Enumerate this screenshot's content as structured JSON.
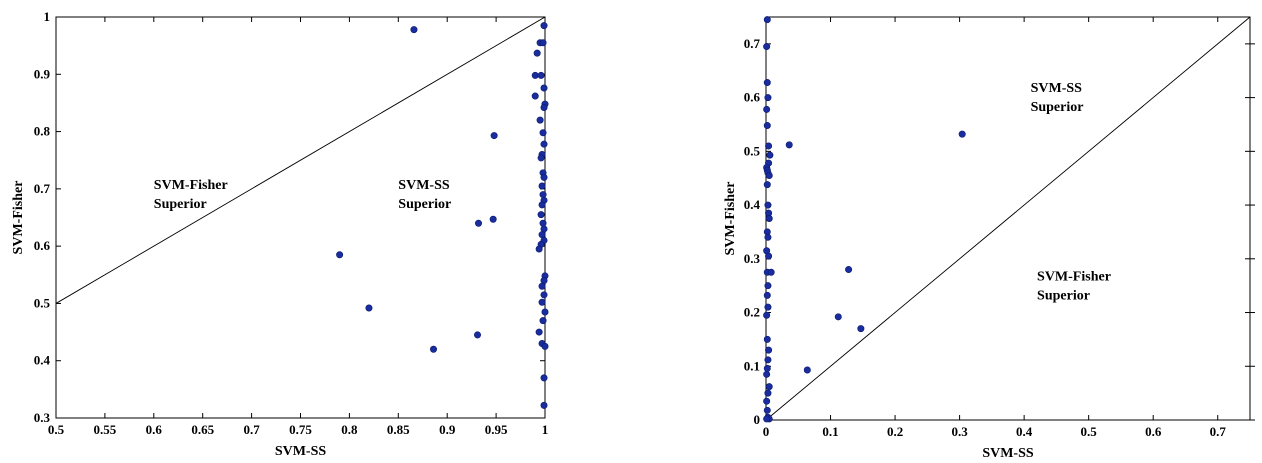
{
  "chart_data": [
    {
      "type": "scatter",
      "title": "",
      "xlabel": "SVM-SS",
      "ylabel": "SVM-Fisher",
      "xlim": [
        0.5,
        1
      ],
      "ylim": [
        0.3,
        1
      ],
      "xticks": [
        "0.5",
        "0.55",
        "0.6",
        "0.65",
        "0.7",
        "0.75",
        "0.8",
        "0.85",
        "0.9",
        "0.95",
        "1"
      ],
      "yticks": [
        "0.3",
        "0.4",
        "0.5",
        "0.6",
        "0.7",
        "0.8",
        "0.9",
        "1"
      ],
      "grid": false,
      "diagonal": true,
      "point_color": "#1a2d9e",
      "annotations": [
        {
          "lines": [
            "SVM-Fisher",
            "Superior"
          ],
          "x": 0.6,
          "y": 0.7
        },
        {
          "lines": [
            "SVM-SS",
            "Superior"
          ],
          "x": 0.85,
          "y": 0.7
        }
      ],
      "points": [
        [
          0.866,
          0.978
        ],
        [
          0.999,
          0.985
        ],
        [
          0.995,
          0.955
        ],
        [
          0.998,
          0.955
        ],
        [
          0.992,
          0.937
        ],
        [
          0.99,
          0.898
        ],
        [
          0.996,
          0.898
        ],
        [
          0.999,
          0.876
        ],
        [
          0.99,
          0.862
        ],
        [
          1.0,
          0.848
        ],
        [
          0.999,
          0.842
        ],
        [
          0.995,
          0.82
        ],
        [
          0.998,
          0.798
        ],
        [
          0.948,
          0.793
        ],
        [
          0.999,
          0.778
        ],
        [
          0.997,
          0.76
        ],
        [
          0.996,
          0.754
        ],
        [
          0.998,
          0.728
        ],
        [
          0.999,
          0.72
        ],
        [
          0.997,
          0.705
        ],
        [
          0.998,
          0.69
        ],
        [
          0.999,
          0.68
        ],
        [
          0.997,
          0.672
        ],
        [
          0.996,
          0.655
        ],
        [
          0.947,
          0.647
        ],
        [
          0.932,
          0.64
        ],
        [
          0.998,
          0.64
        ],
        [
          0.999,
          0.63
        ],
        [
          0.997,
          0.62
        ],
        [
          0.999,
          0.61
        ],
        [
          0.996,
          0.603
        ],
        [
          0.994,
          0.595
        ],
        [
          0.79,
          0.585
        ],
        [
          1.0,
          0.548
        ],
        [
          0.999,
          0.54
        ],
        [
          0.997,
          0.53
        ],
        [
          0.999,
          0.515
        ],
        [
          0.997,
          0.502
        ],
        [
          0.82,
          0.492
        ],
        [
          1.0,
          0.485
        ],
        [
          0.998,
          0.47
        ],
        [
          0.994,
          0.45
        ],
        [
          0.931,
          0.445
        ],
        [
          0.997,
          0.43
        ],
        [
          1.0,
          0.425
        ],
        [
          0.886,
          0.42
        ],
        [
          0.999,
          0.37
        ],
        [
          0.999,
          0.322
        ]
      ]
    },
    {
      "type": "scatter",
      "title": "",
      "xlabel": "SVM-SS",
      "ylabel": "SVM-Fisher",
      "xlim": [
        0,
        0.75
      ],
      "ylim": [
        0,
        0.75
      ],
      "xticks": [
        "0",
        "0.1",
        "0.2",
        "0.3",
        "0.4",
        "0.5",
        "0.6",
        "0.7"
      ],
      "yticks": [
        "0",
        "0.1",
        "0.2",
        "0.3",
        "0.4",
        "0.5",
        "0.6",
        "0.7"
      ],
      "grid": false,
      "diagonal": true,
      "point_color": "#1a2d9e",
      "annotations": [
        {
          "lines": [
            "SVM-SS",
            "Superior"
          ],
          "x": 0.41,
          "y": 0.61
        },
        {
          "lines": [
            "SVM-Fisher",
            "Superior"
          ],
          "x": 0.42,
          "y": 0.26
        }
      ],
      "points": [
        [
          0.002,
          0.745
        ],
        [
          0.001,
          0.695
        ],
        [
          0.002,
          0.628
        ],
        [
          0.003,
          0.6
        ],
        [
          0.001,
          0.578
        ],
        [
          0.002,
          0.548
        ],
        [
          0.004,
          0.51
        ],
        [
          0.036,
          0.512
        ],
        [
          0.304,
          0.532
        ],
        [
          0.006,
          0.493
        ],
        [
          0.004,
          0.478
        ],
        [
          0.001,
          0.47
        ],
        [
          0.002,
          0.465
        ],
        [
          0.003,
          0.46
        ],
        [
          0.005,
          0.455
        ],
        [
          0.002,
          0.438
        ],
        [
          0.003,
          0.4
        ],
        [
          0.004,
          0.385
        ],
        [
          0.005,
          0.375
        ],
        [
          0.002,
          0.35
        ],
        [
          0.003,
          0.34
        ],
        [
          0.001,
          0.315
        ],
        [
          0.004,
          0.305
        ],
        [
          0.002,
          0.275
        ],
        [
          0.008,
          0.275
        ],
        [
          0.128,
          0.28
        ],
        [
          0.003,
          0.25
        ],
        [
          0.002,
          0.232
        ],
        [
          0.003,
          0.21
        ],
        [
          0.001,
          0.195
        ],
        [
          0.112,
          0.192
        ],
        [
          0.147,
          0.17
        ],
        [
          0.002,
          0.15
        ],
        [
          0.004,
          0.13
        ],
        [
          0.003,
          0.112
        ],
        [
          0.002,
          0.096
        ],
        [
          0.064,
          0.093
        ],
        [
          0.001,
          0.085
        ],
        [
          0.005,
          0.062
        ],
        [
          0.003,
          0.05
        ],
        [
          0.001,
          0.035
        ],
        [
          0.002,
          0.018
        ],
        [
          0.003,
          0.005
        ],
        [
          0.005,
          0.002
        ],
        [
          0.001,
          0.002
        ]
      ]
    }
  ]
}
